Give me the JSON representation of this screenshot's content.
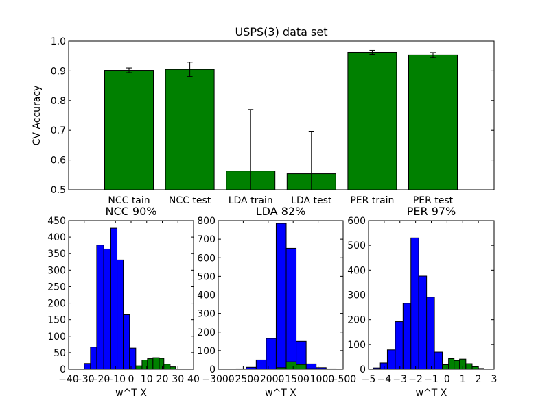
{
  "chart_data": [
    {
      "type": "bar",
      "title": "USPS(3) data set",
      "xlabel": "",
      "ylabel": "CV Accuracy",
      "ylim": [
        0.5,
        1.0
      ],
      "yticks": [
        "0.5",
        "0.6",
        "0.7",
        "0.8",
        "0.9",
        "1.0"
      ],
      "grid": false,
      "bar_color": "#008000",
      "categories": [
        "NCC tain",
        "NCC test",
        "LDA train",
        "LDA test",
        "PER train",
        "PER test"
      ],
      "values": [
        0.902,
        0.905,
        0.563,
        0.554,
        0.962,
        0.953
      ],
      "errors": [
        0.008,
        0.024,
        0.207,
        0.143,
        0.007,
        0.008
      ]
    },
    {
      "type": "bar",
      "title": "NCC 90%",
      "xlabel": "w^T X",
      "ylabel": "",
      "xlim": [
        -40,
        40
      ],
      "ylim": [
        0,
        450
      ],
      "xticks": [
        -40,
        -30,
        -20,
        -10,
        0,
        10,
        20,
        30,
        40
      ],
      "xtick_labels": [
        "−40",
        "−30",
        "−20",
        "−10",
        "0",
        "10",
        "20",
        "30",
        "40"
      ],
      "yticks": [
        0,
        50,
        100,
        150,
        200,
        250,
        300,
        350,
        400,
        450
      ],
      "ytick_labels": [
        "0",
        "50",
        "100",
        "150",
        "200",
        "250",
        "300",
        "350",
        "400",
        "450"
      ],
      "series": [
        {
          "color": "#0000ff",
          "bins": [
            [
              -30,
              -26,
              17
            ],
            [
              -26,
              -22,
              67
            ],
            [
              -22,
              -17.5,
              376
            ],
            [
              -17.5,
              -13,
              364
            ],
            [
              -13,
              -9,
              427
            ],
            [
              -9,
              -5,
              331
            ],
            [
              -5,
              -1,
              165
            ],
            [
              -1,
              3,
              64
            ],
            [
              3,
              7,
              0
            ]
          ]
        },
        {
          "color": "#008000",
          "bins": [
            [
              3,
              7,
              10
            ],
            [
              7,
              10.5,
              28
            ],
            [
              10.5,
              14,
              32
            ],
            [
              14,
              18,
              35
            ],
            [
              18,
              21,
              33
            ],
            [
              21,
              25,
              15
            ],
            [
              25,
              28.5,
              7
            ]
          ]
        }
      ]
    },
    {
      "type": "bar",
      "title": "LDA 82%",
      "xlabel": "w^T X",
      "ylabel": "",
      "xlim": [
        -3000,
        -500
      ],
      "ylim": [
        0,
        800
      ],
      "xticks": [
        -3000,
        -2500,
        -2000,
        -1500,
        -1000,
        -500
      ],
      "xtick_labels": [
        "−3000",
        "−2500",
        "−2000",
        "−1500",
        "−1000",
        "−500"
      ],
      "yticks": [
        0,
        100,
        200,
        300,
        400,
        500,
        600,
        700,
        800
      ],
      "ytick_labels": [
        "0",
        "100",
        "200",
        "300",
        "400",
        "500",
        "600",
        "700",
        "800"
      ],
      "series": [
        {
          "color": "#0000ff",
          "bins": [
            [
              -2640,
              -2440,
              2
            ],
            [
              -2440,
              -2240,
              10
            ],
            [
              -2240,
              -2040,
              50
            ],
            [
              -2040,
              -1840,
              166
            ],
            [
              -1840,
              -1640,
              785
            ],
            [
              -1640,
              -1440,
              651
            ],
            [
              -1440,
              -1240,
              150
            ],
            [
              -1240,
              -1040,
              28
            ],
            [
              -1040,
              -840,
              8
            ],
            [
              -840,
              -640,
              2
            ]
          ]
        },
        {
          "color": "#008000",
          "bins": [
            [
              -1840,
              -1640,
              8
            ],
            [
              -1640,
              -1440,
              40
            ],
            [
              -1440,
              -1240,
              25
            ],
            [
              -1240,
              -1040,
              3
            ]
          ]
        }
      ]
    },
    {
      "type": "bar",
      "title": "PER 97%",
      "xlabel": "w^T X",
      "ylabel": "",
      "xlim": [
        -5,
        3
      ],
      "ylim": [
        0,
        600
      ],
      "xticks": [
        -5,
        -4,
        -3,
        -2,
        -1,
        0,
        1,
        2,
        3
      ],
      "xtick_labels": [
        "−5",
        "−4",
        "−3",
        "−2",
        "−1",
        "0",
        "1",
        "2",
        "3"
      ],
      "yticks": [
        0,
        100,
        200,
        300,
        400,
        500,
        600
      ],
      "ytick_labels": [
        "0",
        "100",
        "200",
        "300",
        "400",
        "500",
        "600"
      ],
      "series": [
        {
          "color": "#0000ff",
          "bins": [
            [
              -4.7,
              -4.25,
              5
            ],
            [
              -4.25,
              -3.8,
              25
            ],
            [
              -3.8,
              -3.3,
              78
            ],
            [
              -3.3,
              -2.8,
              192
            ],
            [
              -2.8,
              -2.3,
              266
            ],
            [
              -2.3,
              -1.8,
              530
            ],
            [
              -1.8,
              -1.3,
              376
            ],
            [
              -1.3,
              -0.8,
              291
            ],
            [
              -0.8,
              -0.3,
              69
            ],
            [
              -0.3,
              0.2,
              15
            ]
          ]
        },
        {
          "color": "#008000",
          "bins": [
            [
              -0.3,
              0.1,
              18
            ],
            [
              0.1,
              0.45,
              43
            ],
            [
              0.45,
              0.8,
              35
            ],
            [
              0.8,
              1.2,
              41
            ],
            [
              1.2,
              1.6,
              22
            ],
            [
              1.6,
              2.0,
              10
            ],
            [
              2.0,
              2.35,
              3
            ]
          ]
        }
      ]
    }
  ]
}
